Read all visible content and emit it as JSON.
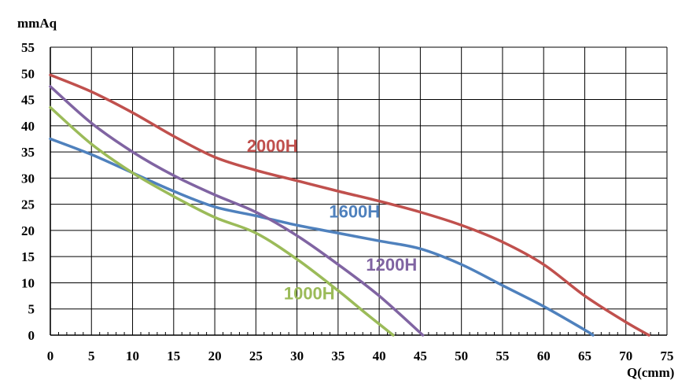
{
  "chart_data": {
    "type": "line",
    "title": "",
    "xlabel": "Q(cmm)",
    "ylabel": "mmAq",
    "xlim": [
      0,
      75
    ],
    "ylim": [
      0,
      55
    ],
    "x_ticks": [
      0,
      5,
      10,
      15,
      20,
      25,
      30,
      35,
      40,
      45,
      50,
      55,
      60,
      65,
      70,
      75
    ],
    "y_ticks": [
      0,
      5,
      10,
      15,
      20,
      25,
      30,
      35,
      40,
      45,
      50,
      55
    ],
    "grid": true,
    "legend": "inline labels",
    "series": [
      {
        "name": "2000H",
        "color": "#c0504d",
        "points": [
          [
            0,
            49.7
          ],
          [
            5,
            46.5
          ],
          [
            10,
            42.5
          ],
          [
            15,
            38.0
          ],
          [
            20,
            34.0
          ],
          [
            25,
            31.5
          ],
          [
            30,
            29.5
          ],
          [
            35,
            27.5
          ],
          [
            40,
            25.6
          ],
          [
            45,
            23.5
          ],
          [
            50,
            21.0
          ],
          [
            55,
            17.8
          ],
          [
            60,
            13.5
          ],
          [
            65,
            7.5
          ],
          [
            70,
            2.5
          ],
          [
            72.8,
            0
          ]
        ]
      },
      {
        "name": "1600H",
        "color": "#4f81bd",
        "points": [
          [
            0,
            37.5
          ],
          [
            5,
            34.5
          ],
          [
            10,
            31.0
          ],
          [
            15,
            27.5
          ],
          [
            20,
            24.5
          ],
          [
            25,
            22.8
          ],
          [
            30,
            21.0
          ],
          [
            35,
            19.5
          ],
          [
            40,
            18.0
          ],
          [
            45,
            16.5
          ],
          [
            50,
            13.5
          ],
          [
            55,
            9.5
          ],
          [
            60,
            5.5
          ],
          [
            65,
            1.0
          ],
          [
            66,
            0
          ]
        ]
      },
      {
        "name": "1200H",
        "color": "#8064a2",
        "points": [
          [
            0,
            47.5
          ],
          [
            5,
            40.5
          ],
          [
            10,
            35.0
          ],
          [
            15,
            30.5
          ],
          [
            20,
            26.8
          ],
          [
            25,
            23.5
          ],
          [
            30,
            19.0
          ],
          [
            35,
            13.5
          ],
          [
            40,
            7.5
          ],
          [
            45.3,
            0
          ]
        ]
      },
      {
        "name": "1000H",
        "color": "#9bbb59",
        "points": [
          [
            0,
            43.5
          ],
          [
            5,
            36.5
          ],
          [
            10,
            31.0
          ],
          [
            15,
            26.5
          ],
          [
            20,
            22.5
          ],
          [
            25,
            19.5
          ],
          [
            30,
            14.5
          ],
          [
            35,
            8.5
          ],
          [
            38.5,
            4.0
          ],
          [
            41.7,
            0
          ]
        ]
      }
    ],
    "annotations": [
      {
        "text": "2000H",
        "x": 27,
        "y": 35,
        "color": "#c0504d"
      },
      {
        "text": "1600H",
        "x": 37,
        "y": 22.5,
        "color": "#4f81bd"
      },
      {
        "text": "1200H",
        "x": 41.5,
        "y": 12.3,
        "color": "#8064a2"
      },
      {
        "text": "1000H",
        "x": 31.5,
        "y": 6.8,
        "color": "#9bbb59"
      }
    ]
  }
}
